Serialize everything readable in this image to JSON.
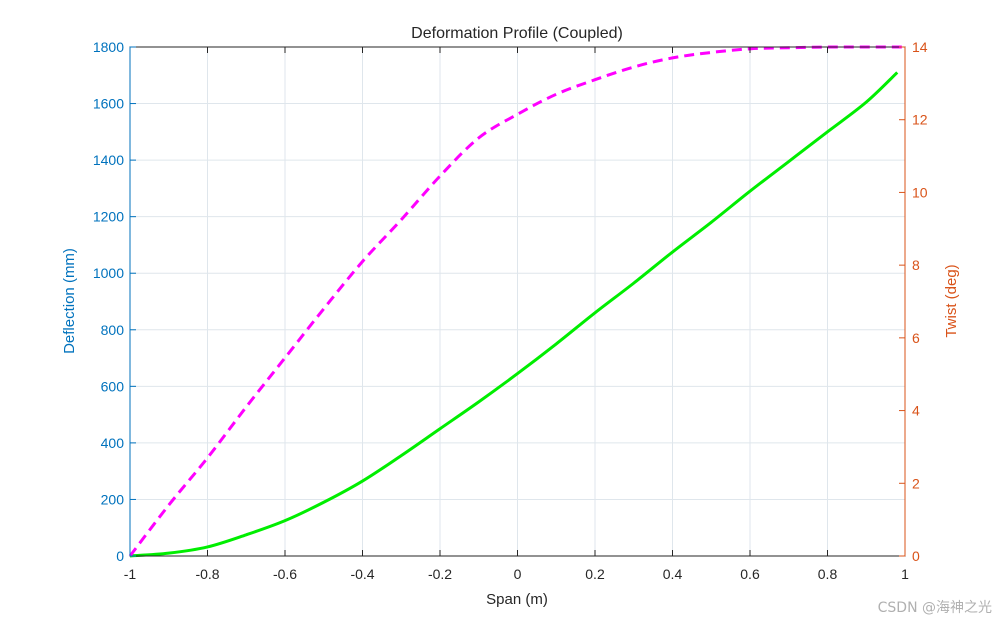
{
  "chart_data": {
    "type": "line",
    "title": "Deformation Profile (Coupled)",
    "xlabel": "Span (m)",
    "ylabel_left": "Deflection (mm)",
    "ylabel_right": "Twist (deg)",
    "xlim": [
      -1,
      1
    ],
    "ylim_left": [
      0,
      1800
    ],
    "ylim_right": [
      0,
      14
    ],
    "xticks": [
      -1,
      -0.8,
      -0.6,
      -0.4,
      -0.2,
      0,
      0.2,
      0.4,
      0.6,
      0.8,
      1
    ],
    "xtick_labels": [
      "-1",
      "-0.8",
      "-0.6",
      "-0.4",
      "-0.2",
      "0",
      "0.2",
      "0.4",
      "0.6",
      "0.8",
      "1"
    ],
    "yticks_left": [
      0,
      200,
      400,
      600,
      800,
      1000,
      1200,
      1400,
      1600,
      1800
    ],
    "ytick_labels_left": [
      "0",
      "200",
      "400",
      "600",
      "800",
      "1000",
      "1200",
      "1400",
      "1600",
      "1800"
    ],
    "yticks_right": [
      0,
      2,
      4,
      6,
      8,
      10,
      12,
      14
    ],
    "ytick_labels_right": [
      "0",
      "2",
      "4",
      "6",
      "8",
      "10",
      "12",
      "14"
    ],
    "grid": true,
    "colors": {
      "left_axis": "#0072BD",
      "right_axis": "#D95319",
      "grid": "#dfe6ec",
      "box": "#262626"
    },
    "series": [
      {
        "axis": "left",
        "color": "#00ee00",
        "style": "solid",
        "x": [
          -1,
          -0.9,
          -0.8,
          -0.7,
          -0.6,
          -0.5,
          -0.4,
          -0.3,
          -0.2,
          -0.1,
          0,
          0.1,
          0.2,
          0.3,
          0.4,
          0.5,
          0.6,
          0.7,
          0.8,
          0.9,
          0.98
        ],
        "y": [
          0,
          10,
          32,
          75,
          125,
          190,
          265,
          355,
          450,
          545,
          645,
          750,
          860,
          965,
          1075,
          1180,
          1290,
          1395,
          1500,
          1605,
          1710
        ]
      },
      {
        "axis": "right",
        "color": "#ff00ff",
        "style": "dashed",
        "x": [
          -1,
          -0.9,
          -0.8,
          -0.7,
          -0.6,
          -0.5,
          -0.4,
          -0.3,
          -0.2,
          -0.1,
          0,
          0.1,
          0.2,
          0.3,
          0.4,
          0.5,
          0.6,
          0.7,
          0.8,
          0.9,
          1
        ],
        "y": [
          0,
          1.4,
          2.7,
          4.1,
          5.45,
          6.8,
          8.1,
          9.25,
          10.45,
          11.5,
          12.15,
          12.7,
          13.1,
          13.45,
          13.7,
          13.85,
          13.95,
          13.98,
          14.0,
          14.0,
          14.0
        ]
      }
    ]
  },
  "watermark": "CSDN @海神之光"
}
